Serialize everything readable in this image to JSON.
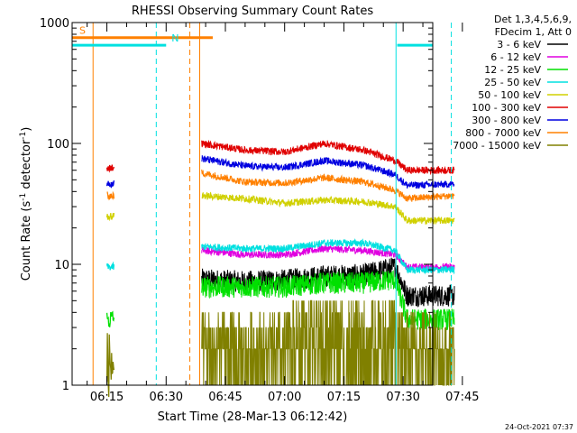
{
  "chart_data": {
    "type": "line",
    "title": "RHESSI Observing Summary Count Rates",
    "xlabel": "Start Time (28-Mar-13 06:12:42)",
    "ylabel_main": "Count Rate (s",
    "ylabel_sup1": "-1",
    "ylabel_mid": " detector",
    "ylabel_sup2": "-1",
    "ylabel_end": ")",
    "yscale": "log",
    "ylim": [
      1,
      1000
    ],
    "xlim_minutes": [
      6.2,
      97.5
    ],
    "ytick_labels": [
      "1",
      "10",
      "100",
      "1000"
    ],
    "ytick_values": [
      1,
      10,
      100,
      1000
    ],
    "xtick_labels": [
      "06:15",
      "06:30",
      "06:45",
      "07:00",
      "07:15",
      "07:30",
      "07:45"
    ],
    "xtick_minutes": [
      15,
      30,
      45,
      60,
      75,
      90,
      105
    ],
    "legend": {
      "header1": "Det 1,3,4,5,6,9,",
      "header2": "FDecim 1, Att 0",
      "entries": [
        {
          "label": "3 - 6 keV",
          "color": "#000000"
        },
        {
          "label": "6 - 12 keV",
          "color": "#e000e0"
        },
        {
          "label": "12 - 25 keV",
          "color": "#00e000"
        },
        {
          "label": "25 - 50 keV",
          "color": "#00e0e0"
        },
        {
          "label": "50 - 100 keV",
          "color": "#d0d000"
        },
        {
          "label": "100 - 300 keV",
          "color": "#e00000"
        },
        {
          "label": "300 - 800 keV",
          "color": "#0000e0"
        },
        {
          "label": "800 - 7000 keV",
          "color": "#ff8000"
        },
        {
          "label": "7000 - 15000 keV",
          "color": "#808000"
        }
      ]
    },
    "flags": [
      {
        "label": "S",
        "color": "#ff8000",
        "start_min": 6.2,
        "end_min": 41.8,
        "level": 750
      },
      {
        "label": "N",
        "color": "#00e0e0",
        "start_min": 6.2,
        "end_min": 30.0,
        "level": 650
      },
      {
        "label": "",
        "color": "#00e0e0",
        "start_min": 88.5,
        "end_min": 97.5,
        "level": 650
      }
    ],
    "vlines": [
      {
        "minute": 6.2,
        "color": "#00e0e0",
        "style": "solid"
      },
      {
        "minute": 11.5,
        "color": "#ff8000",
        "style": "solid"
      },
      {
        "minute": 27.5,
        "color": "#00e0e0",
        "style": "dashed"
      },
      {
        "minute": 36.0,
        "color": "#ff8000",
        "style": "dashed"
      },
      {
        "minute": 38.5,
        "color": "#ff8000",
        "style": "solid"
      },
      {
        "minute": 88.2,
        "color": "#00e0e0",
        "style": "solid"
      },
      {
        "minute": 102.2,
        "color": "#00e0e0",
        "style": "dashed"
      }
    ],
    "segments": [
      {
        "start_min": 15.0,
        "end_min": 16.8
      },
      {
        "start_min": 39.0,
        "end_min": 103.0
      }
    ],
    "series": [
      {
        "color": "#000000",
        "seg1": 0,
        "levels": [
          [
            39,
            7.5
          ],
          [
            50,
            7.2
          ],
          [
            60,
            7.4
          ],
          [
            70,
            8.0
          ],
          [
            80,
            8.2
          ],
          [
            88,
            9.5
          ],
          [
            91,
            5.5
          ],
          [
            103,
            5.5
          ]
        ]
      },
      {
        "color": "#e000e0",
        "seg1": 0,
        "levels": [
          [
            39,
            13
          ],
          [
            50,
            12
          ],
          [
            60,
            12
          ],
          [
            70,
            13.5
          ],
          [
            80,
            13
          ],
          [
            88,
            12
          ],
          [
            91,
            9.5
          ],
          [
            103,
            9.5
          ]
        ]
      },
      {
        "color": "#00e000",
        "seg1": 3.5,
        "levels": [
          [
            39,
            6.5
          ],
          [
            50,
            6.5
          ],
          [
            60,
            6.5
          ],
          [
            70,
            7.0
          ],
          [
            80,
            7.0
          ],
          [
            88,
            7.5
          ],
          [
            91,
            3.5
          ],
          [
            103,
            3.5
          ]
        ]
      },
      {
        "color": "#00e0e0",
        "seg1": 9.5,
        "levels": [
          [
            39,
            14
          ],
          [
            50,
            13.5
          ],
          [
            60,
            13.5
          ],
          [
            70,
            15
          ],
          [
            80,
            15
          ],
          [
            88,
            13
          ],
          [
            91,
            9
          ],
          [
            103,
            9
          ]
        ]
      },
      {
        "color": "#d0d000",
        "seg1": 25,
        "levels": [
          [
            39,
            37
          ],
          [
            50,
            35
          ],
          [
            60,
            32
          ],
          [
            70,
            34
          ],
          [
            80,
            33
          ],
          [
            88,
            30
          ],
          [
            91,
            23
          ],
          [
            103,
            23
          ]
        ]
      },
      {
        "color": "#e00000",
        "seg1": 63,
        "levels": [
          [
            39,
            100
          ],
          [
            50,
            88
          ],
          [
            60,
            85
          ],
          [
            70,
            100
          ],
          [
            80,
            88
          ],
          [
            88,
            72
          ],
          [
            91,
            60
          ],
          [
            103,
            60
          ]
        ]
      },
      {
        "color": "#0000e0",
        "seg1": 47,
        "levels": [
          [
            39,
            75
          ],
          [
            50,
            65
          ],
          [
            60,
            63
          ],
          [
            70,
            72
          ],
          [
            80,
            66
          ],
          [
            88,
            55
          ],
          [
            91,
            45
          ],
          [
            103,
            46
          ]
        ]
      },
      {
        "color": "#ff8000",
        "seg1": 37,
        "levels": [
          [
            39,
            57
          ],
          [
            50,
            48
          ],
          [
            60,
            47
          ],
          [
            70,
            52
          ],
          [
            80,
            48
          ],
          [
            88,
            41
          ],
          [
            91,
            35
          ],
          [
            103,
            37
          ]
        ]
      },
      {
        "color": "#808000",
        "seg1": 1.5,
        "levels": [
          [
            39,
            1.6
          ],
          [
            103,
            1.6
          ]
        ]
      }
    ]
  },
  "footer": {
    "timestamp": "24-Oct-2021 07:37"
  }
}
